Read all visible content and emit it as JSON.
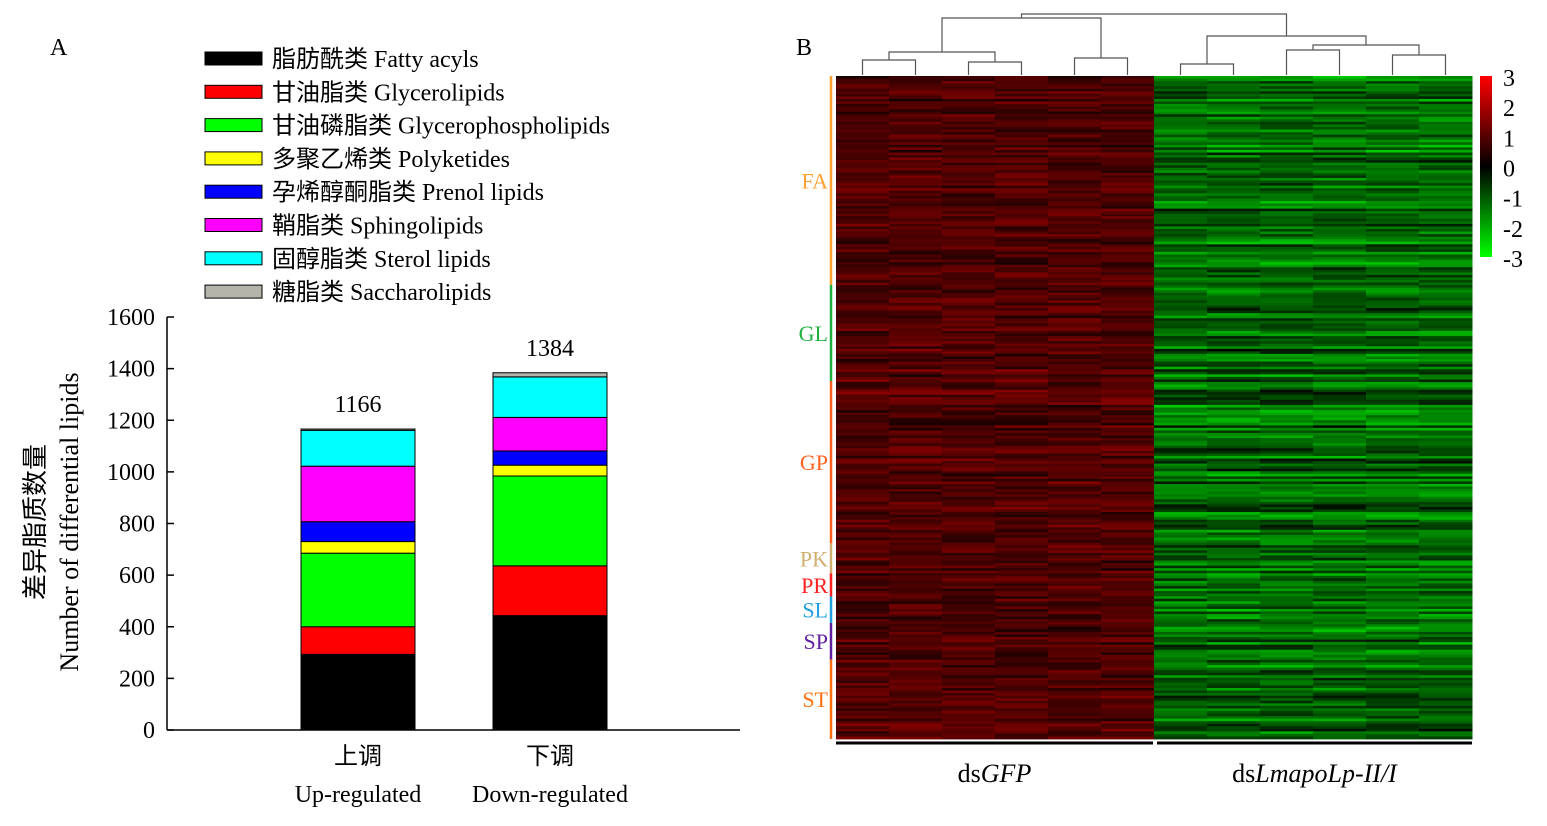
{
  "panel_a_label": "A",
  "panel_b_label": "B",
  "chart_data": [
    {
      "type": "bar",
      "stacked": true,
      "ylabel_cn": "差异脂质数量",
      "ylabel_en": "Number of differential lipids",
      "ylim": [
        0,
        1600
      ],
      "yticks": [
        0,
        200,
        400,
        600,
        800,
        1000,
        1200,
        1400,
        1600
      ],
      "categories": [
        {
          "cn": "上调",
          "en": "Up-regulated"
        },
        {
          "cn": "下调",
          "en": "Down-regulated"
        }
      ],
      "totals": [
        1166,
        1384
      ],
      "series": [
        {
          "name": "脂肪酰类 Fatty acyls",
          "color": "#000000",
          "values": [
            293,
            443
          ]
        },
        {
          "name": "甘油脂类 Glycerolipids",
          "color": "#ff0000",
          "values": [
            107,
            193
          ]
        },
        {
          "name": "甘油磷脂类 Glycerophospholipids",
          "color": "#00ff00",
          "values": [
            285,
            348
          ]
        },
        {
          "name": "多聚乙烯类 Polyketides",
          "color": "#ffff00",
          "values": [
            45,
            42
          ]
        },
        {
          "name": "孕烯醇酮脂类 Prenol lipids",
          "color": "#0000ff",
          "values": [
            77,
            55
          ]
        },
        {
          "name": "鞘脂类 Sphingolipids",
          "color": "#ff00ff",
          "values": [
            215,
            130
          ]
        },
        {
          "name": "固醇脂类 Sterol lipids",
          "color": "#00ffff",
          "values": [
            139,
            157
          ]
        },
        {
          "name": "糖脂类 Saccharolipids",
          "color": "#b4b4aa",
          "values": [
            5,
            16
          ]
        }
      ],
      "legend_position": "top"
    },
    {
      "type": "heatmap",
      "scale_range": [
        -3,
        3
      ],
      "scale_ticks": [
        "3",
        "2",
        "1",
        "0",
        "-1",
        "-2",
        "-3"
      ],
      "scale_colors": {
        "high": "#ff0000",
        "mid": "#000000",
        "low": "#00ff00"
      },
      "rows_total": 2550,
      "columns": 12,
      "groups": [
        {
          "name": "dsGFP",
          "prefix": "ds",
          "italic": "GFP",
          "columns": 6,
          "mean": 1.1
        },
        {
          "name": "dsLmapoLp-II/I",
          "prefix": "ds",
          "italic": "LmapoLp-II/I",
          "columns": 6,
          "mean": -1.3
        }
      ],
      "row_categories": [
        {
          "label": "FA",
          "color": "#ffa030",
          "fraction": 0.315
        },
        {
          "label": "GL",
          "color": "#20b040",
          "fraction": 0.145
        },
        {
          "label": "GP",
          "color": "#ff6020",
          "fraction": 0.245
        },
        {
          "label": "PK",
          "color": "#d0b070",
          "fraction": 0.045
        },
        {
          "label": "PR",
          "color": "#ff2020",
          "fraction": 0.035
        },
        {
          "label": "SL",
          "color": "#20a0e0",
          "fraction": 0.04
        },
        {
          "label": "SP",
          "color": "#6020a0",
          "fraction": 0.055
        },
        {
          "label": "ST",
          "color": "#ff7010",
          "fraction": 0.12
        }
      ]
    }
  ]
}
